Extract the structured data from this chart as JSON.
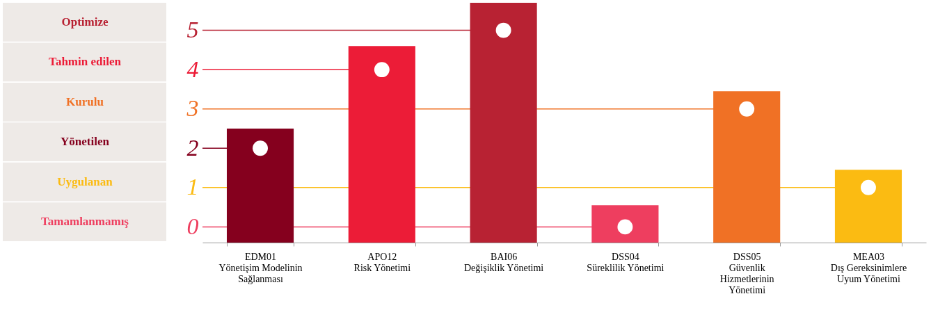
{
  "chart_data": {
    "type": "bar",
    "categories": [
      "EDM01\nYönetişim Modelinin\nSağlanması",
      "APO12\nRisk Yönetimi",
      "BAI06\nDeğişiklik Yönetimi",
      "DSS04\nSüreklilik Yönetimi",
      "DSS05\nGüvenlik\nHizmetlerinin\nYönetimi",
      "MEA03\nDış Gereksinimlere\nUyum Yönetimi"
    ],
    "series": [
      {
        "colors": [
          "#85001e",
          "#ec1c37",
          "#b82233",
          "#ee3e5f",
          "#f07125",
          "#fbbb12"
        ],
        "base": [
          -0.4,
          -0.4,
          -0.4,
          -0.4,
          -0.4,
          -0.4
        ],
        "values": [
          2.9,
          5.0,
          6.1,
          0.95,
          3.85,
          1.85
        ]
      },
      {
        "type": "scatter",
        "color": "#ffffff",
        "marker": "circle",
        "values": [
          2,
          4,
          5,
          0,
          3,
          1
        ]
      }
    ],
    "ylim": [
      -0.4,
      5.7
    ],
    "yticks": [
      0,
      1,
      2,
      3,
      4,
      5
    ],
    "grid": false,
    "ref_lines": [
      {
        "axis": "y",
        "value": 5,
        "label": "Optimize",
        "color": "#b82233"
      },
      {
        "axis": "y",
        "value": 4,
        "label": "Tahmin edilen",
        "color": "#ec1c37"
      },
      {
        "axis": "y",
        "value": 3,
        "label": "Kurulu",
        "color": "#f07125"
      },
      {
        "axis": "y",
        "value": 2,
        "label": "Yönetilen",
        "color": "#85001e"
      },
      {
        "axis": "y",
        "value": 1,
        "label": "Uygulanan",
        "color": "#fbbb12"
      },
      {
        "axis": "y",
        "value": 0,
        "label": "Tamamlanmamış",
        "color": "#ee3e5f"
      }
    ]
  }
}
